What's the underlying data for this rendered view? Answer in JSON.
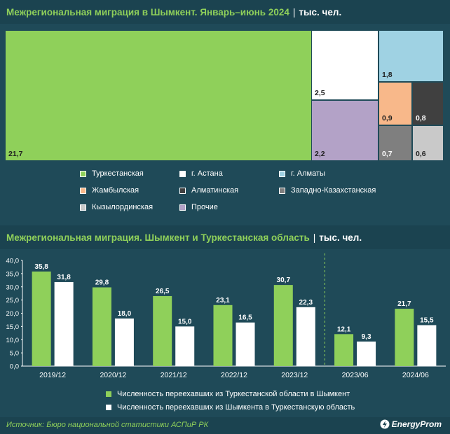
{
  "treemap": {
    "title": "Межрегиональная миграция в Шымкент. Январь–июнь 2024",
    "separator": "|",
    "unit": "тыс. чел.",
    "chart_data": {
      "type": "treemap",
      "items": [
        {
          "name": "Туркестанская",
          "value": 21.7,
          "label": "21,7",
          "color": "#8fd05a"
        },
        {
          "name": "г. Астана",
          "value": 2.5,
          "label": "2,5",
          "color": "#ffffff"
        },
        {
          "name": "г. Алматы",
          "value": 1.8,
          "label": "1,8",
          "color": "#9fd2e3"
        },
        {
          "name": "Жамбылская",
          "value": 0.9,
          "label": "0,9",
          "color": "#f8b88a"
        },
        {
          "name": "Алматинская",
          "value": 0.8,
          "label": "0,8",
          "color": "#404040"
        },
        {
          "name": "Западно-Казахстанская",
          "value": 0.7,
          "label": "0,7",
          "color": "#7f7f7f"
        },
        {
          "name": "Кызылординская",
          "value": 0.6,
          "label": "0,6",
          "color": "#c9c9c9"
        },
        {
          "name": "Прочие",
          "value": 2.2,
          "label": "2,2",
          "color": "#b3a2c7"
        }
      ]
    }
  },
  "barchart": {
    "title": "Межрегиональная миграция. Шымкент и Туркестанская область",
    "separator": "|",
    "unit": "тыс. чел.",
    "chart_data": {
      "type": "bar",
      "categories": [
        "2019/12",
        "2020/12",
        "2021/12",
        "2022/12",
        "2023/12",
        "2023/06",
        "2024/06"
      ],
      "series": [
        {
          "name": "Численность переехавших из Туркестанской области в Шымкент",
          "values": [
            35.8,
            29.8,
            26.5,
            23.1,
            30.7,
            12.1,
            21.7
          ],
          "labels": [
            "35,8",
            "29,8",
            "26,5",
            "23,1",
            "30,7",
            "12,1",
            "21,7"
          ],
          "color": "#8fd05a"
        },
        {
          "name": "Численность переехавших из Шымкента в Туркестанскую область",
          "values": [
            31.8,
            18.0,
            15.0,
            16.5,
            22.3,
            9.3,
            15.5
          ],
          "labels": [
            "31,8",
            "18,0",
            "15,0",
            "16,5",
            "22,3",
            "9,3",
            "15,5"
          ],
          "color": "#ffffff"
        }
      ],
      "yticks": [
        "0,0",
        "5,0",
        "10,0",
        "15,0",
        "20,0",
        "25,0",
        "30,0",
        "35,0",
        "40,0"
      ],
      "ylim": [
        0,
        40
      ],
      "legend_position": "bottom"
    }
  },
  "footer": {
    "source": "Источник: Бюро национальной статистики АСПиР РК",
    "brand": "EnergyProm"
  }
}
